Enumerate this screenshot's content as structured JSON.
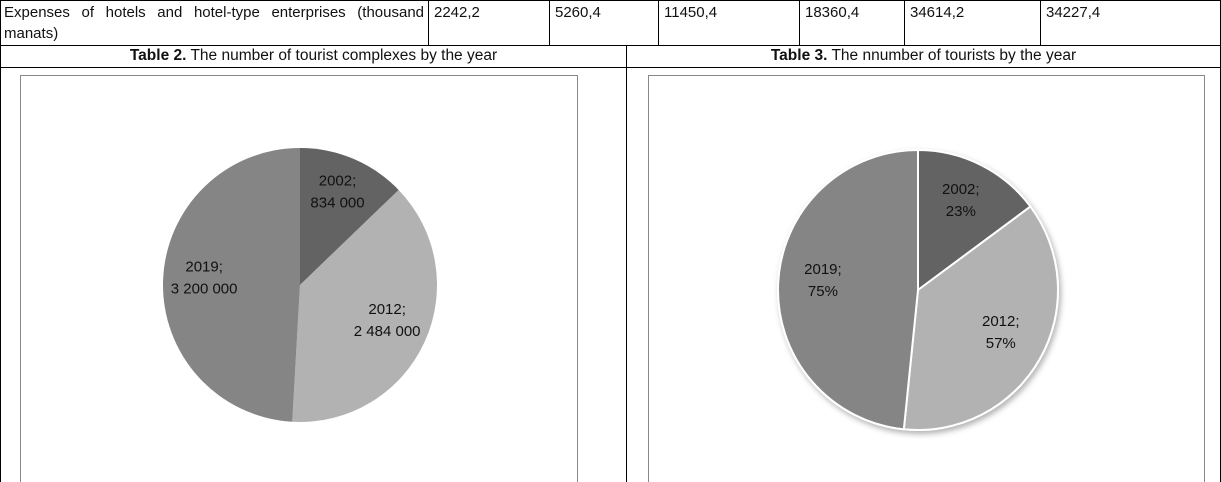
{
  "table": {
    "rows": [
      [
        "Expenses of hotels and hotel-type enterprises (thousand manats)",
        "2242,2",
        "5260,4",
        "11450,4",
        "18360,4",
        "34614,2",
        "34227,4"
      ]
    ]
  },
  "chart_data": [
    {
      "type": "pie",
      "caption_label": "Table 2.",
      "title": "The number of tourist complexes by the year",
      "categories": [
        "2002",
        "2012",
        "2019"
      ],
      "separator": ";",
      "values": [
        834000,
        2484000,
        3200000
      ],
      "value_labels": [
        "834 000",
        "2 484 000",
        "3 200 000"
      ],
      "colors": [
        "#636363",
        "#b2b2b2",
        "#858585"
      ]
    },
    {
      "type": "pie",
      "caption_label": "Table 3.",
      "title": "The nnumber of tourists by the year",
      "categories": [
        "2002",
        "2012",
        "2019"
      ],
      "separator": ";",
      "values": [
        23,
        57,
        75
      ],
      "value_labels": [
        "23%",
        "57%",
        "75%"
      ],
      "colors": [
        "#636363",
        "#b2b2b2",
        "#858585"
      ]
    }
  ]
}
